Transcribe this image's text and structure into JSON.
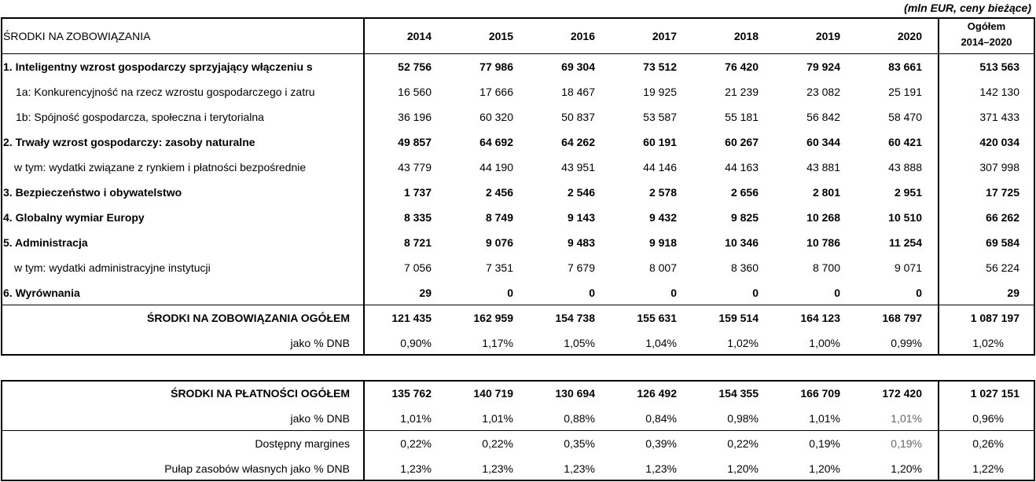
{
  "note": "(mln EUR, ceny bieżące)",
  "table1": {
    "header": [
      "ŚRODKI NA ZOBOWIĄZANIA",
      "2014",
      "2015",
      "2016",
      "2017",
      "2018",
      "2019",
      "2020",
      "Ogółem 2014–2020"
    ],
    "rows": [
      [
        "1. Inteligentny wzrost gospodarczy sprzyjający włączeniu s",
        "52 756",
        "77 986",
        "69 304",
        "73 512",
        "76 420",
        "79 924",
        "83 661",
        "513 563"
      ],
      [
        "1a: Konkurencyjność na rzecz wzrostu gospodarczego i zatru",
        "16 560",
        "17 666",
        "18 467",
        "19 925",
        "21 239",
        "23 082",
        "25 191",
        "142 130"
      ],
      [
        "1b: Spójność gospodarcza, społeczna i terytorialna",
        "36 196",
        "60 320",
        "50 837",
        "53 587",
        "55 181",
        "56 842",
        "58 470",
        "371 433"
      ],
      [
        "2. Trwały wzrost gospodarczy: zasoby naturalne",
        "49 857",
        "64 692",
        "64 262",
        "60 191",
        "60 267",
        "60 344",
        "60 421",
        "420 034"
      ],
      [
        "w tym: wydatki związane z rynkiem i płatności bezpośrednie",
        "43 779",
        "44 190",
        "43 951",
        "44 146",
        "44 163",
        "43 881",
        "43 888",
        "307 998"
      ],
      [
        "3. Bezpieczeństwo i obywatelstwo",
        "1 737",
        "2 456",
        "2 546",
        "2 578",
        "2 656",
        "2 801",
        "2 951",
        "17 725"
      ],
      [
        "4. Globalny wymiar Europy",
        "8 335",
        "8 749",
        "9 143",
        "9 432",
        "9 825",
        "10 268",
        "10 510",
        "66 262"
      ],
      [
        "5. Administracja",
        "8 721",
        "9 076",
        "9 483",
        "9 918",
        "10 346",
        "10 786",
        "11 254",
        "69 584"
      ],
      [
        "w tym: wydatki administracyjne instytucji",
        "7 056",
        "7 351",
        "7 679",
        "8 007",
        "8 360",
        "8 700",
        "9 071",
        "56 224"
      ],
      [
        "6. Wyrównania",
        "29",
        "0",
        "0",
        "0",
        "0",
        "0",
        "0",
        "29"
      ],
      [
        "ŚRODKI NA ZOBOWIĄZANIA OGÓŁEM",
        "121 435",
        "162 959",
        "154 738",
        "155 631",
        "159 514",
        "164 123",
        "168 797",
        "1 087 197"
      ],
      [
        "jako % DNB",
        "0,90%",
        "1,17%",
        "1,05%",
        "1,04%",
        "1,02%",
        "1,00%",
        "0,99%",
        "1,02%"
      ]
    ]
  },
  "table2": {
    "rows": [
      [
        "ŚRODKI NA PŁATNOŚCI OGÓŁEM",
        "135 762",
        "140 719",
        "130 694",
        "126 492",
        "154 355",
        "166 709",
        "172 420",
        "1 027 151"
      ],
      [
        "jako % DNB",
        "1,01%",
        "1,01%",
        "0,88%",
        "0,84%",
        "0,98%",
        "1,01%",
        "1,01%",
        "0,96%"
      ],
      [
        "Dostępny margines",
        "0,22%",
        "0,22%",
        "0,35%",
        "0,39%",
        "0,22%",
        "0,19%",
        "0,19%",
        "0,26%"
      ],
      [
        "Pułap zasobów własnych jako % DNB",
        "1,23%",
        "1,23%",
        "1,23%",
        "1,23%",
        "1,20%",
        "1,20%",
        "1,20%",
        "1,22%"
      ]
    ]
  }
}
